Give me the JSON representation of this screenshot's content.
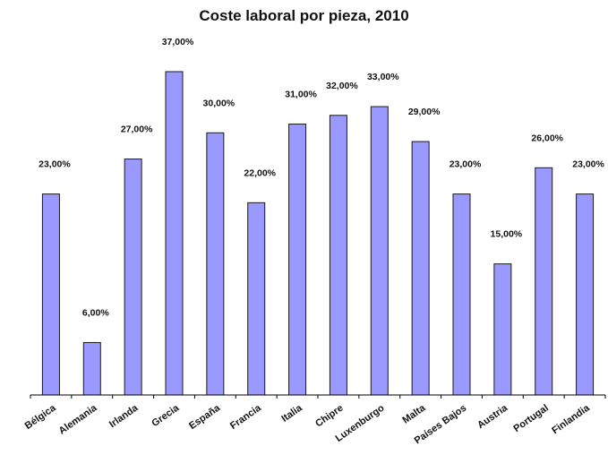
{
  "chart_data": {
    "type": "bar",
    "title": "Coste laboral por pieza, 2010",
    "xlabel": "",
    "ylabel": "",
    "categories": [
      "Bélgica",
      "Alemania",
      "Irlanda",
      "Grecia",
      "España",
      "Francia",
      "Italia",
      "Chipre",
      "Luxenburgo",
      "Malta",
      "Países Bajos",
      "Austria",
      "Portugal",
      "Finlandia"
    ],
    "values": [
      23,
      6,
      27,
      37,
      30,
      22,
      31,
      32,
      33,
      29,
      23,
      15,
      26,
      23
    ],
    "value_labels": [
      "23,00%",
      "6,00%",
      "27,00%",
      "37,00%",
      "30,00%",
      "22,00%",
      "31,00%",
      "32,00%",
      "33,00%",
      "29,00%",
      "23,00%",
      "15,00%",
      "26,00%",
      "23,00%"
    ],
    "ylim": [
      0,
      37
    ],
    "grid": false,
    "legend": "none",
    "colors": {
      "bar": "#9999ff",
      "outline": "#1a1a1a"
    }
  }
}
